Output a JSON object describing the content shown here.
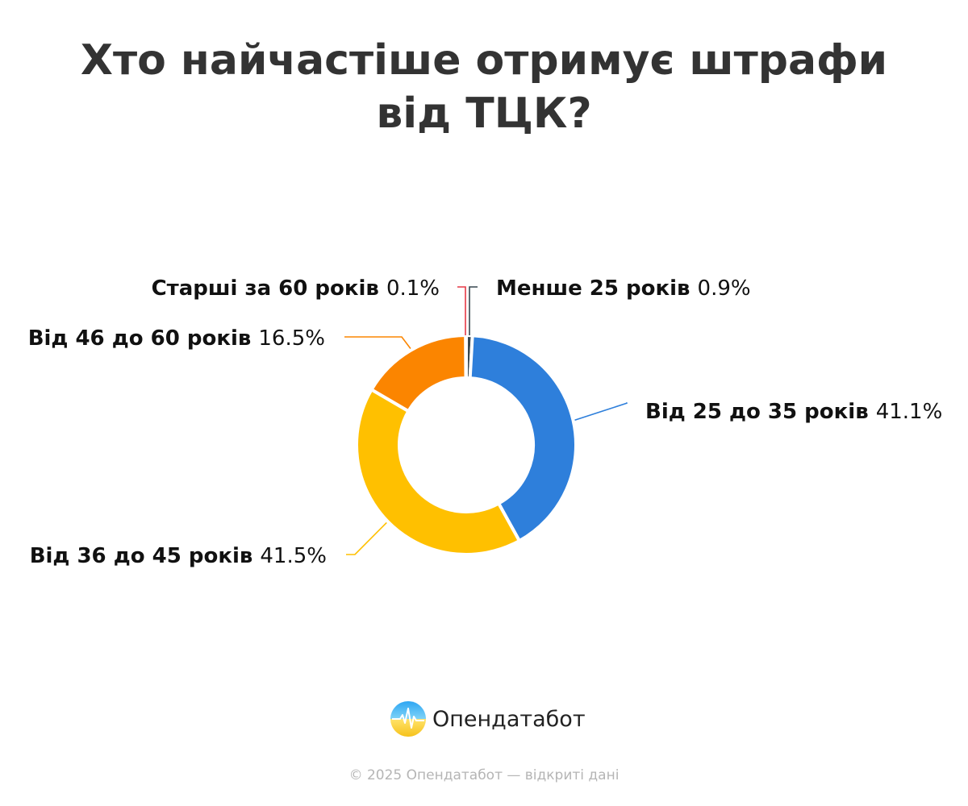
{
  "header": {
    "title_line1": "Хто найчастіше отримує штрафи",
    "title_line2": "від ТЦК?"
  },
  "chart_data": {
    "type": "pie",
    "variant": "donut",
    "slices": [
      {
        "label": "Менше 25 років",
        "value": 0.9,
        "display": "0.9%",
        "color": "#37474F"
      },
      {
        "label": "Від 25 до 35 років",
        "value": 41.1,
        "display": "41.1%",
        "color": "#2E7FDB"
      },
      {
        "label": "Від 36 до 45 років",
        "value": 41.5,
        "display": "41.5%",
        "color": "#FFC000"
      },
      {
        "label": "Від 46 до 60 років",
        "value": 16.5,
        "display": "16.5%",
        "color": "#FB8500"
      },
      {
        "label": "Старші за 60 років",
        "value": 0.1,
        "display": "0.1%",
        "color": "#E63946"
      }
    ],
    "start_angle": "top",
    "direction": "clockwise",
    "legend": "none",
    "labels_outside": true
  },
  "brand": {
    "logo_icon": "opendatabot-logo-icon",
    "name": "Опендатабот"
  },
  "footer": {
    "copyright": "© 2025 Опендатабот — відкриті дані"
  }
}
